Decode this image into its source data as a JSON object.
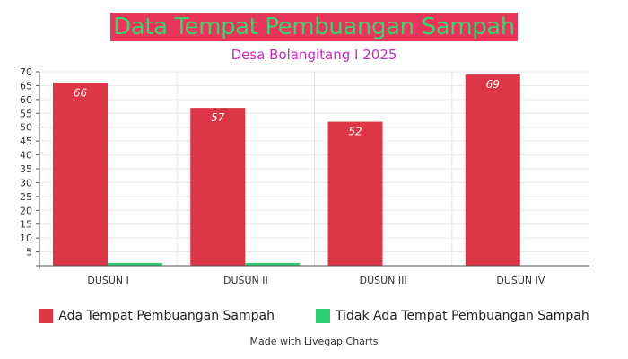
{
  "chart_data": {
    "type": "bar",
    "title": "Data Tempat Pembuangan Sampah",
    "subtitle": "Desa Bolangitang I 2025",
    "xlabel": "",
    "ylabel": "",
    "categories": [
      "DUSUN I",
      "DUSUN II",
      "DUSUN III",
      "DUSUN IV"
    ],
    "series": [
      {
        "name": "Ada Tempat Pembuangan Sampah",
        "values": [
          66,
          57,
          52,
          69
        ],
        "color": "#dc3545"
      },
      {
        "name": "Tidak Ada Tempat Pembuangan Sampah",
        "values": [
          1,
          1,
          0,
          0
        ],
        "color": "#2ecc71"
      }
    ],
    "show_data_labels_series": [
      0
    ],
    "ylim": [
      0,
      70
    ],
    "yticks": [
      5,
      10,
      15,
      20,
      25,
      30,
      35,
      40,
      45,
      50,
      55,
      60,
      65,
      70
    ],
    "grid": true,
    "legend_position": "bottom"
  },
  "footer": "Made with Livegap Charts",
  "colors": {
    "title_background": "#e8365a",
    "title_text": "#3fd070",
    "subtitle_text": "#c030b8",
    "grid": "#e6e6e6",
    "axis": "#555555"
  }
}
